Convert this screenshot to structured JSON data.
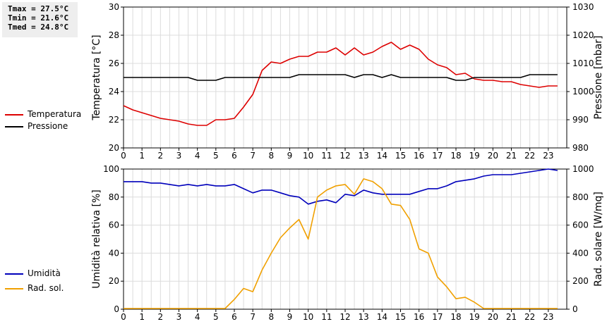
{
  "stats": [
    "Tmax = 27.5°C",
    "Tmin = 21.6°C",
    "Tmed = 24.8°C"
  ],
  "chart_data": [
    {
      "type": "line",
      "x_ticks": [
        "0",
        "1",
        "2",
        "3",
        "4",
        "5",
        "6",
        "7",
        "8",
        "9",
        "10",
        "11",
        "12",
        "13",
        "14",
        "15",
        "16",
        "17",
        "18",
        "19",
        "20",
        "21",
        "22",
        "23"
      ],
      "ylabel_left": "Temperatura [°C]",
      "ylabel_right": "Pressione [mbar]",
      "ylim_left": [
        20,
        30
      ],
      "ylim_right": [
        980,
        1030
      ],
      "yticks_left": [
        "30",
        "28",
        "26",
        "24",
        "22",
        "20"
      ],
      "yticks_right": [
        "1030",
        "1020",
        "1010",
        "1000",
        "990",
        "980"
      ],
      "grid": true,
      "legend": [
        {
          "name": "Temperatura",
          "color": "#dd0000"
        },
        {
          "name": "Pressione",
          "color": "#000000"
        }
      ],
      "series": [
        {
          "name": "Temperatura",
          "axis": "left",
          "color": "#dd0000",
          "x": [
            0,
            0.5,
            1,
            1.5,
            2,
            2.5,
            3,
            3.5,
            4,
            4.5,
            5,
            5.5,
            6,
            6.5,
            7,
            7.5,
            8,
            8.5,
            9,
            9.5,
            10,
            10.5,
            11,
            11.5,
            12,
            12.5,
            13,
            13.5,
            14,
            14.5,
            15,
            15.5,
            16,
            16.5,
            17,
            17.5,
            18,
            18.5,
            19,
            19.5,
            20,
            20.5,
            21,
            21.5,
            22,
            22.5,
            23,
            23.5
          ],
          "y": [
            23.0,
            22.7,
            22.5,
            22.3,
            22.1,
            22.0,
            21.9,
            21.7,
            21.6,
            21.6,
            22.0,
            22.0,
            22.1,
            22.9,
            23.8,
            25.5,
            26.1,
            26.0,
            26.3,
            26.5,
            26.5,
            26.8,
            26.8,
            27.1,
            26.6,
            27.1,
            26.6,
            26.8,
            27.2,
            27.5,
            27.0,
            27.3,
            27.0,
            26.3,
            25.9,
            25.7,
            25.2,
            25.3,
            24.9,
            24.8,
            24.8,
            24.7,
            24.7,
            24.5,
            24.4,
            24.3,
            24.4,
            24.4
          ]
        },
        {
          "name": "Pressione",
          "axis": "right",
          "color": "#000000",
          "x": [
            0,
            0.5,
            1,
            1.5,
            2,
            2.5,
            3,
            3.5,
            4,
            4.5,
            5,
            5.5,
            6,
            6.5,
            7,
            7.5,
            8,
            8.5,
            9,
            9.5,
            10,
            10.5,
            11,
            11.5,
            12,
            12.5,
            13,
            13.5,
            14,
            14.5,
            15,
            15.5,
            16,
            16.5,
            17,
            17.5,
            18,
            18.5,
            19,
            19.5,
            20,
            20.5,
            21,
            21.5,
            22,
            22.5,
            23,
            23.5
          ],
          "y": [
            1005,
            1005,
            1005,
            1005,
            1005,
            1005,
            1005,
            1005,
            1004,
            1004,
            1004,
            1005,
            1005,
            1005,
            1005,
            1005,
            1005,
            1005,
            1005,
            1006,
            1006,
            1006,
            1006,
            1006,
            1006,
            1005,
            1006,
            1006,
            1005,
            1006,
            1005,
            1005,
            1005,
            1005,
            1005,
            1005,
            1004,
            1004,
            1005,
            1005,
            1005,
            1005,
            1005,
            1005,
            1006,
            1006,
            1006,
            1006
          ]
        }
      ]
    },
    {
      "type": "line",
      "x_ticks": [
        "0",
        "1",
        "2",
        "3",
        "4",
        "5",
        "6",
        "7",
        "8",
        "9",
        "10",
        "11",
        "12",
        "13",
        "14",
        "15",
        "16",
        "17",
        "18",
        "19",
        "20",
        "21",
        "22",
        "23"
      ],
      "ylabel_left": "Umidità relativa [%]",
      "ylabel_right": "Rad. solare [W/mq]",
      "ylim_left": [
        0,
        100
      ],
      "ylim_right": [
        0,
        1000
      ],
      "yticks_left": [
        "100",
        "80",
        "60",
        "40",
        "20",
        "0"
      ],
      "yticks_right": [
        "1000",
        "800",
        "600",
        "400",
        "200",
        "0"
      ],
      "grid": true,
      "legend": [
        {
          "name": "Umidità",
          "color": "#0000bb"
        },
        {
          "name": "Rad. sol.",
          "color": "#f0a000"
        }
      ],
      "series": [
        {
          "name": "Umidità",
          "axis": "left",
          "color": "#0000bb",
          "x": [
            0,
            0.5,
            1,
            1.5,
            2,
            2.5,
            3,
            3.5,
            4,
            4.5,
            5,
            5.5,
            6,
            6.5,
            7,
            7.5,
            8,
            8.5,
            9,
            9.5,
            10,
            10.5,
            11,
            11.5,
            12,
            12.5,
            13,
            13.5,
            14,
            14.5,
            15,
            15.5,
            16,
            16.5,
            17,
            17.5,
            18,
            18.5,
            19,
            19.5,
            20,
            20.5,
            21,
            21.5,
            22,
            22.5,
            23,
            23.5
          ],
          "y": [
            91,
            91,
            91,
            90,
            90,
            89,
            88,
            89,
            88,
            89,
            88,
            88,
            89,
            86,
            83,
            85,
            85,
            83,
            81,
            80,
            75,
            77,
            78,
            76,
            82,
            81,
            85,
            83,
            82,
            82,
            82,
            82,
            84,
            86,
            86,
            88,
            91,
            92,
            93,
            95,
            96,
            96,
            96,
            97,
            98,
            99,
            100,
            99
          ]
        },
        {
          "name": "Rad. sol.",
          "axis": "right",
          "color": "#f0a000",
          "x": [
            0,
            0.5,
            1,
            1.5,
            2,
            2.5,
            3,
            3.5,
            4,
            4.5,
            5,
            5.5,
            6,
            6.5,
            7,
            7.5,
            8,
            8.5,
            9,
            9.5,
            10,
            10.5,
            11,
            11.5,
            12,
            12.5,
            13,
            13.5,
            14,
            14.5,
            15,
            15.5,
            16,
            16.5,
            17,
            17.5,
            18,
            18.5,
            19,
            19.5,
            20,
            20.5,
            21,
            21.5,
            22,
            22.5,
            23,
            23.5
          ],
          "y": [
            5,
            5,
            5,
            5,
            5,
            5,
            5,
            5,
            5,
            5,
            5,
            5,
            70,
            148,
            125,
            280,
            400,
            510,
            580,
            640,
            500,
            800,
            850,
            880,
            890,
            820,
            930,
            910,
            860,
            750,
            740,
            640,
            430,
            400,
            230,
            160,
            75,
            85,
            50,
            5,
            5,
            5,
            5,
            5,
            5,
            5,
            5,
            5
          ]
        }
      ]
    }
  ]
}
